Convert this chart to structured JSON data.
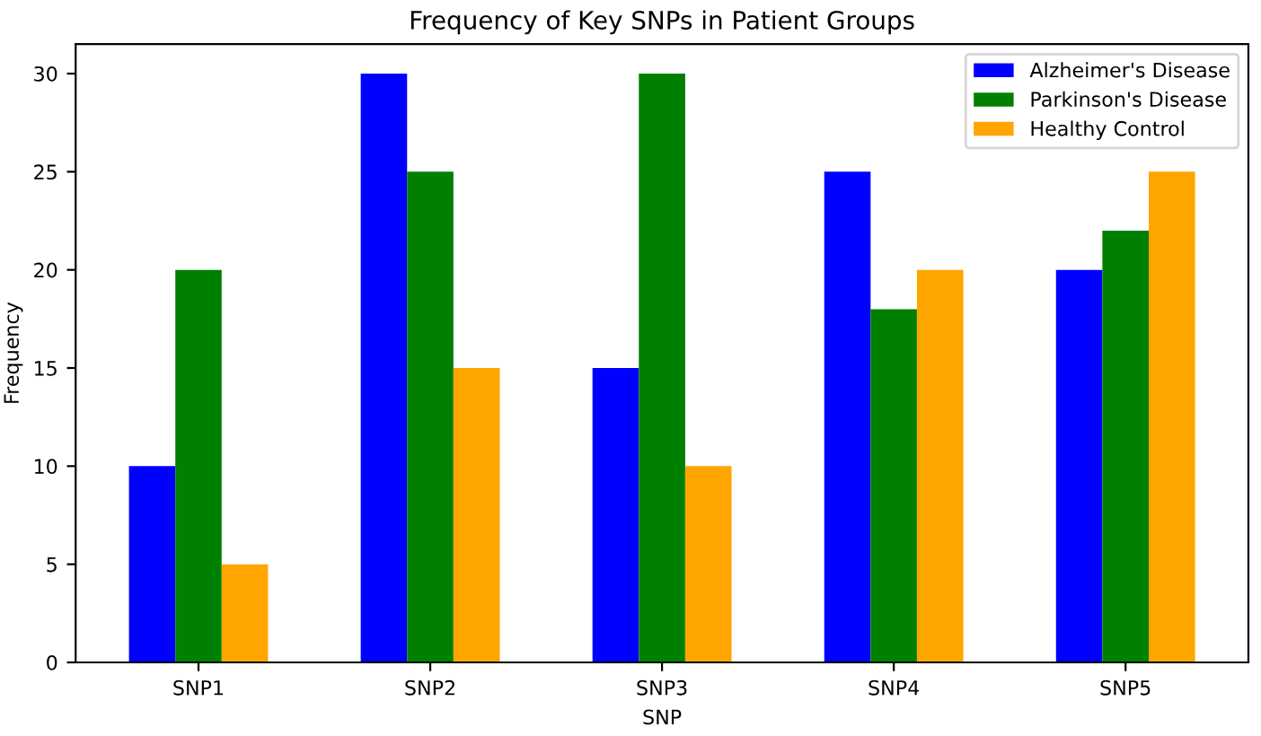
{
  "chart_data": {
    "type": "bar",
    "title": "Frequency of Key SNPs in Patient Groups",
    "xlabel": "SNP",
    "ylabel": "Frequency",
    "categories": [
      "SNP1",
      "SNP2",
      "SNP3",
      "SNP4",
      "SNP5"
    ],
    "series": [
      {
        "name": "Alzheimer's Disease",
        "color": "#0000ff",
        "values": [
          10,
          30,
          15,
          25,
          20
        ]
      },
      {
        "name": "Parkinson's Disease",
        "color": "#008000",
        "values": [
          20,
          25,
          30,
          18,
          22
        ]
      },
      {
        "name": "Healthy Control",
        "color": "#ffa500",
        "values": [
          5,
          15,
          10,
          20,
          25
        ]
      }
    ],
    "ylim": [
      0,
      31.5
    ],
    "yticks": [
      0,
      5,
      10,
      15,
      20,
      25,
      30
    ],
    "grid": false,
    "legend": "top right"
  }
}
